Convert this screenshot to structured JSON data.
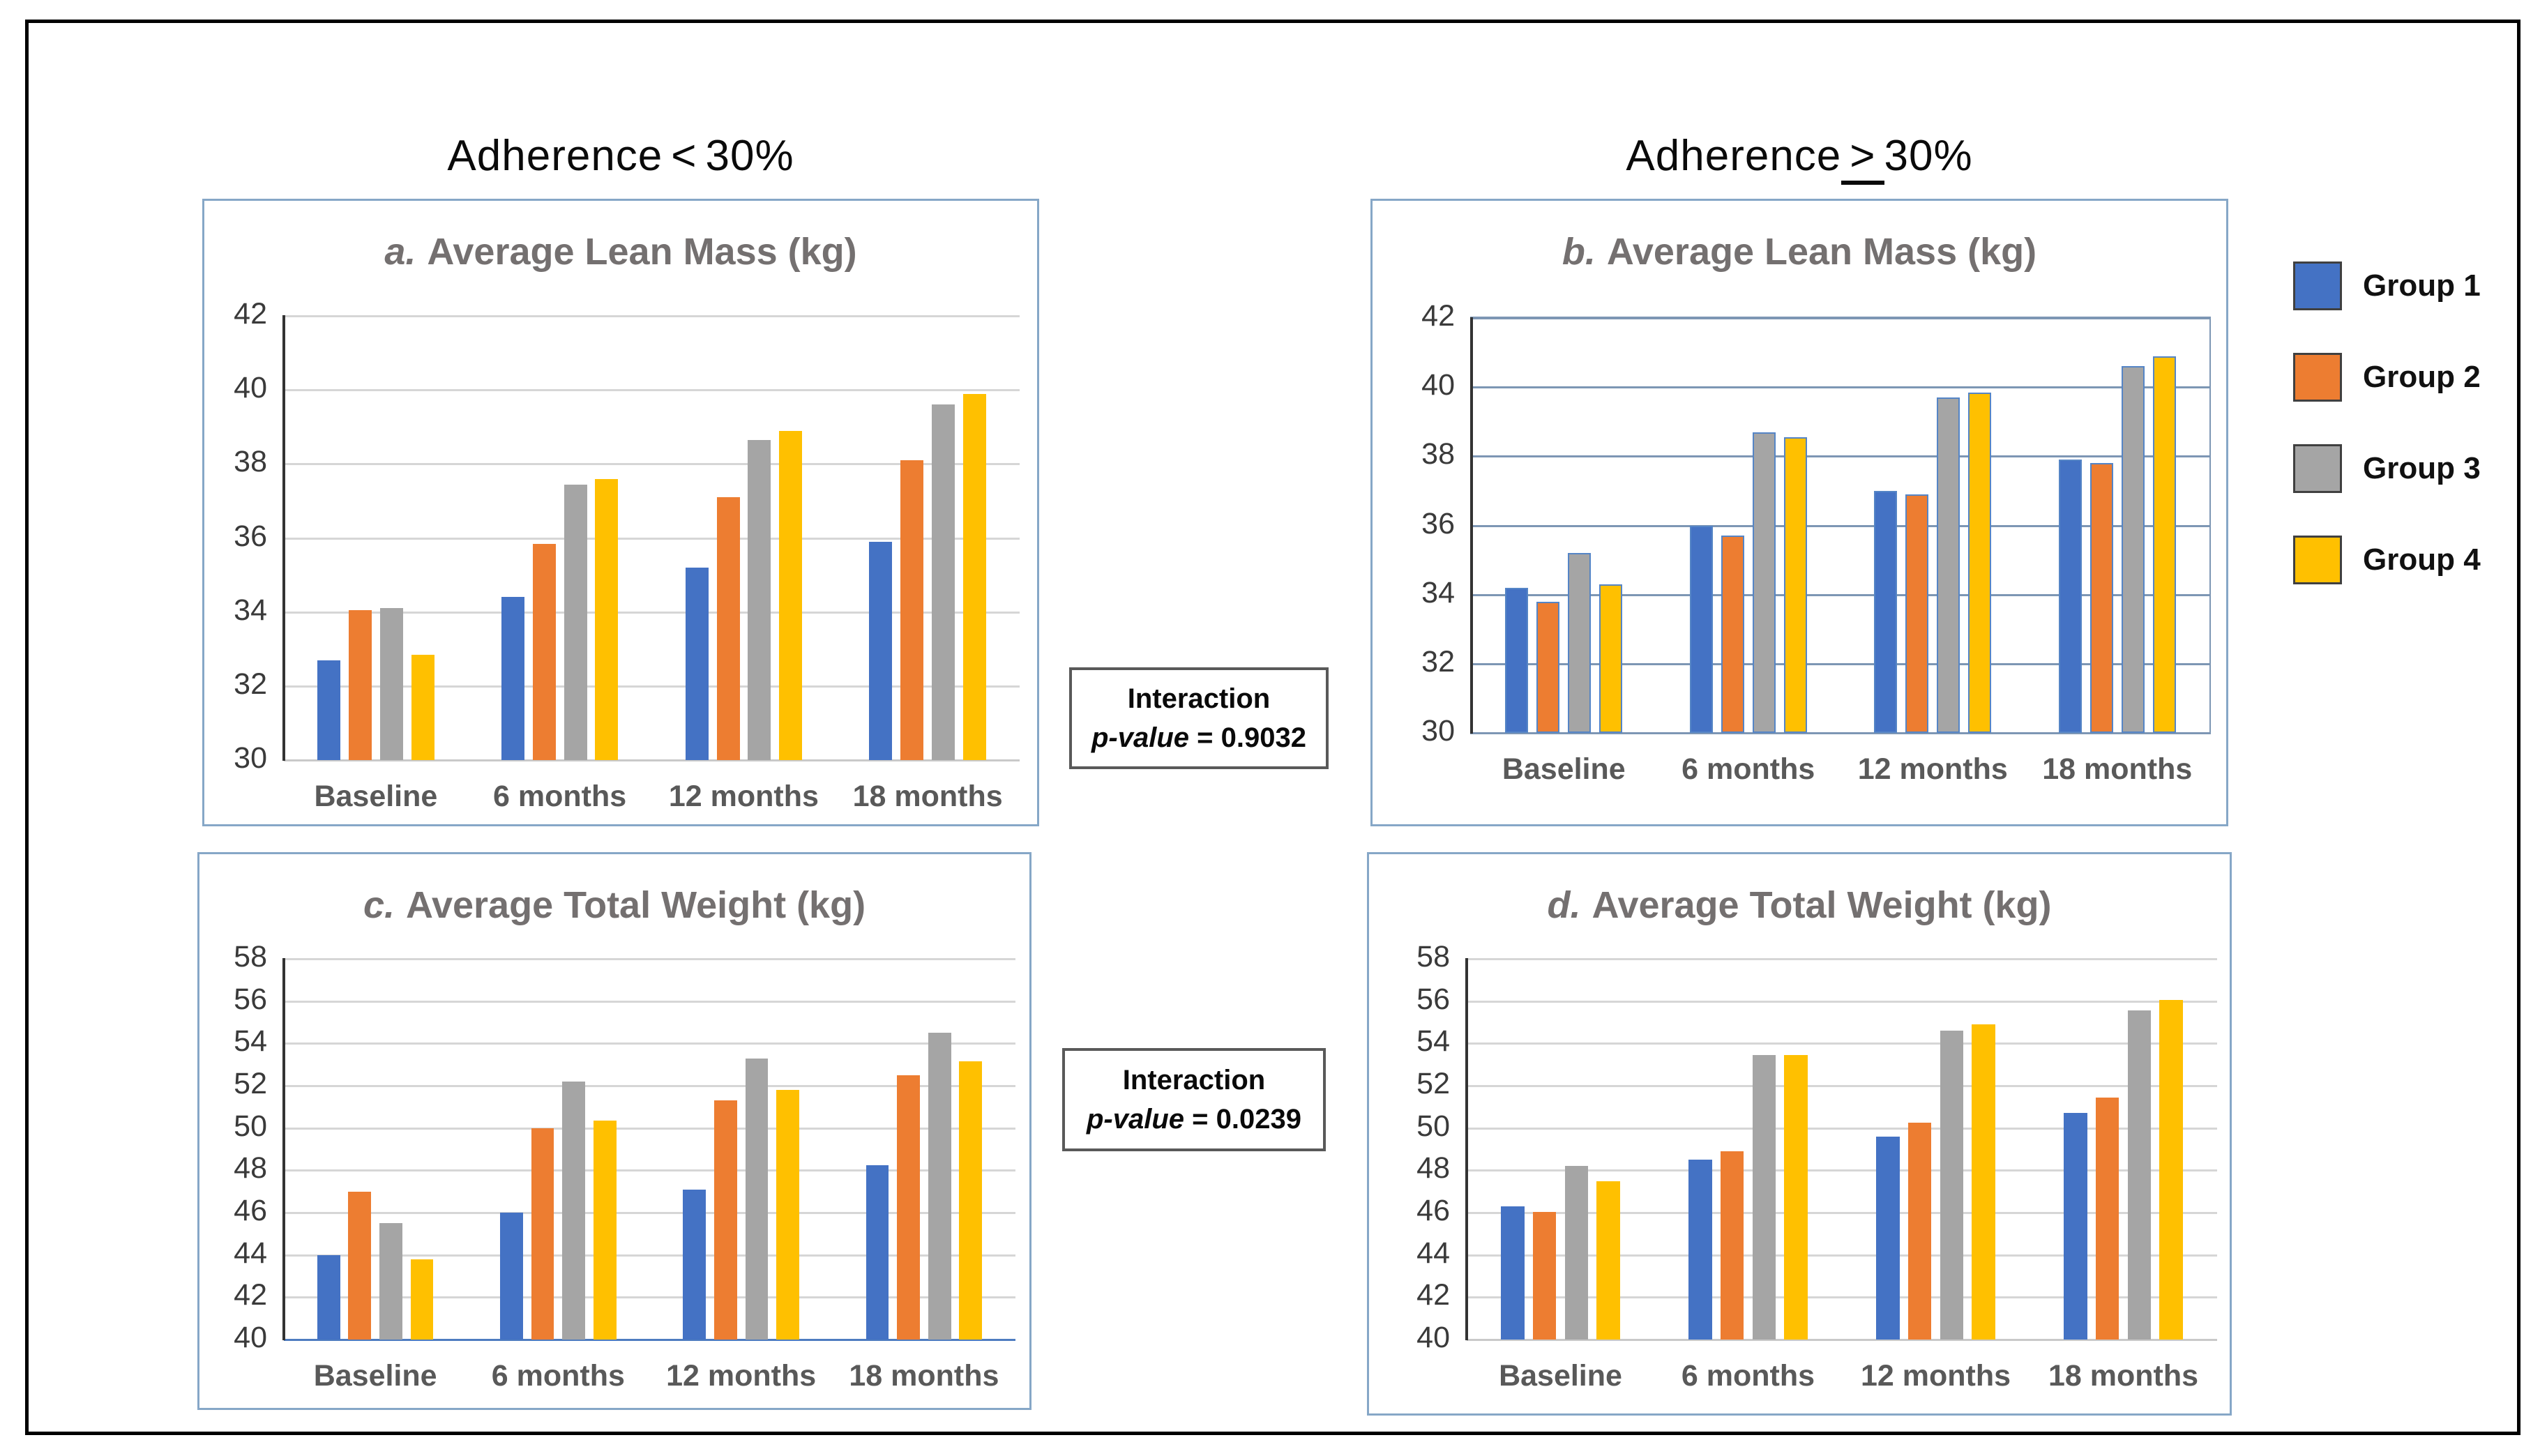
{
  "figure": {
    "background": "#FFFFFF",
    "border_color": "#000000",
    "column_headers": [
      {
        "prefix": "Adherence",
        "comparator": "<",
        "suffix": "30%",
        "comparator_underlined": false
      },
      {
        "prefix": "Adherence",
        "comparator": ">",
        "suffix": "30%",
        "comparator_underlined": true
      }
    ],
    "legend": {
      "position": "right",
      "items": [
        {
          "label": "Group 1",
          "color": "#4472C4"
        },
        {
          "label": "Group 2",
          "color": "#ED7D31"
        },
        {
          "label": "Group 3",
          "color": "#A5A5A5"
        },
        {
          "label": "Group 4",
          "color": "#FFC000"
        }
      ]
    },
    "annotations": [
      {
        "title": "Interaction",
        "p_label": "p-value",
        "p_value": "= 0.9032"
      },
      {
        "title": "Interaction",
        "p_label": "p-value",
        "p_value": "= 0.0239"
      }
    ]
  },
  "chart_data": [
    {
      "id": "a",
      "type": "bar",
      "title_prefix": "a.",
      "title": "Average Lean Mass (kg)",
      "column": "Adherence < 30%",
      "categories": [
        "Baseline",
        "6 months",
        "12 months",
        "18 months"
      ],
      "series": [
        {
          "name": "Group 1",
          "color": "#4472C4",
          "values": [
            32.7,
            34.4,
            35.2,
            35.9
          ]
        },
        {
          "name": "Group 2",
          "color": "#ED7D31",
          "values": [
            34.05,
            35.85,
            37.1,
            38.1
          ]
        },
        {
          "name": "Group 3",
          "color": "#A5A5A5",
          "values": [
            34.1,
            37.45,
            38.65,
            39.6
          ]
        },
        {
          "name": "Group 4",
          "color": "#FFC000",
          "values": [
            32.85,
            37.6,
            38.9,
            39.9
          ]
        }
      ],
      "ylim": [
        30,
        42
      ],
      "ytick_step": 2,
      "grid_on": true,
      "grid_color": "#D6D6D6",
      "left_axis_color": "#333333",
      "bottom_axis_color": "#C9C9C9",
      "plot_border": false,
      "bar_outline": null
    },
    {
      "id": "b",
      "type": "bar",
      "title_prefix": "b.",
      "title": "Average Lean Mass (kg)",
      "column": "Adherence > 30%",
      "categories": [
        "Baseline",
        "6 months",
        "12 months",
        "18 months"
      ],
      "series": [
        {
          "name": "Group 1",
          "color": "#4472C4",
          "values": [
            34.2,
            36.0,
            37.0,
            37.9
          ]
        },
        {
          "name": "Group 2",
          "color": "#ED7D31",
          "values": [
            33.8,
            35.7,
            36.9,
            37.8
          ]
        },
        {
          "name": "Group 3",
          "color": "#A5A5A5",
          "values": [
            35.2,
            38.7,
            39.7,
            40.6
          ]
        },
        {
          "name": "Group 4",
          "color": "#FFC000",
          "values": [
            34.3,
            38.55,
            39.85,
            40.9
          ]
        }
      ],
      "ylim": [
        30,
        42
      ],
      "ytick_step": 2,
      "grid_on": true,
      "grid_color": "#7D96B4",
      "left_axis_color": "#333333",
      "bottom_axis_color": "#7D96B4",
      "plot_border": true,
      "bar_outline": "#5585C6"
    },
    {
      "id": "c",
      "type": "bar",
      "title_prefix": "c.",
      "title": "Average Total Weight (kg)",
      "column": "Adherence < 30%",
      "categories": [
        "Baseline",
        "6 months",
        "12 months",
        "18 months"
      ],
      "series": [
        {
          "name": "Group 1",
          "color": "#4472C4",
          "values": [
            44.0,
            46.0,
            47.1,
            48.25
          ]
        },
        {
          "name": "Group 2",
          "color": "#ED7D31",
          "values": [
            47.0,
            50.0,
            51.3,
            52.5
          ]
        },
        {
          "name": "Group 3",
          "color": "#A5A5A5",
          "values": [
            45.5,
            52.2,
            53.3,
            54.5
          ]
        },
        {
          "name": "Group 4",
          "color": "#FFC000",
          "values": [
            43.8,
            50.35,
            51.8,
            53.15
          ]
        }
      ],
      "ylim": [
        40,
        58
      ],
      "ytick_step": 2,
      "grid_on": true,
      "grid_color": "#D6D6D6",
      "left_axis_color": "#333333",
      "bottom_axis_color": "#4E7CC0",
      "plot_border": false,
      "bar_outline": null
    },
    {
      "id": "d",
      "type": "bar",
      "title_prefix": "d.",
      "title": "Average Total Weight (kg)",
      "column": "Adherence > 30%",
      "categories": [
        "Baseline",
        "6 months",
        "12 months",
        "18 months"
      ],
      "series": [
        {
          "name": "Group 1",
          "color": "#4472C4",
          "values": [
            46.3,
            48.5,
            49.6,
            50.7
          ]
        },
        {
          "name": "Group 2",
          "color": "#ED7D31",
          "values": [
            46.05,
            48.9,
            50.25,
            51.45
          ]
        },
        {
          "name": "Group 3",
          "color": "#A5A5A5",
          "values": [
            48.2,
            53.45,
            54.6,
            55.55
          ]
        },
        {
          "name": "Group 4",
          "color": "#FFC000",
          "values": [
            47.5,
            53.45,
            54.9,
            56.05
          ]
        }
      ],
      "ylim": [
        40,
        58
      ],
      "ytick_step": 2,
      "grid_on": true,
      "grid_color": "#D6D6D6",
      "left_axis_color": "#333333",
      "bottom_axis_color": "#C9C9C9",
      "plot_border": false,
      "bar_outline": null
    }
  ]
}
